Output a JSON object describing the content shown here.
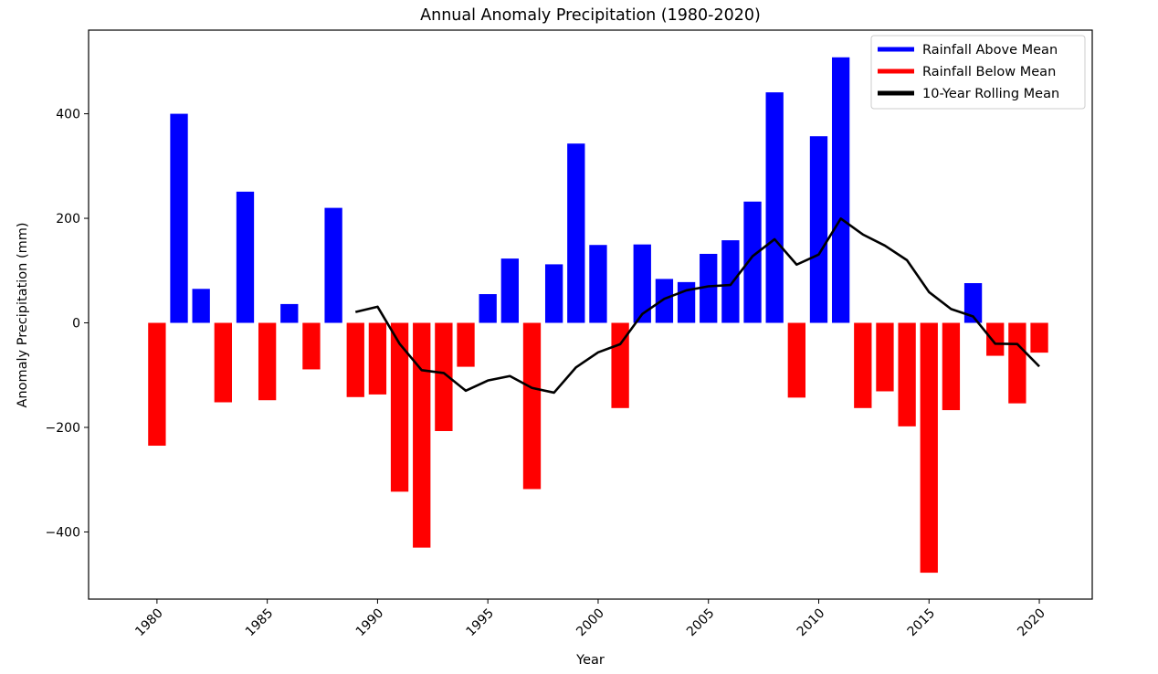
{
  "chart_data": {
    "type": "bar",
    "title": "Annual Anomaly Precipitation (1980-2020)",
    "xlabel": "Year",
    "ylabel": "Anomaly Precipitation (mm)",
    "x": [
      1980,
      1981,
      1982,
      1983,
      1984,
      1985,
      1986,
      1987,
      1988,
      1989,
      1990,
      1991,
      1992,
      1993,
      1994,
      1995,
      1996,
      1997,
      1998,
      1999,
      2000,
      2001,
      2002,
      2003,
      2004,
      2005,
      2006,
      2007,
      2008,
      2009,
      2010,
      2011,
      2012,
      2013,
      2014,
      2015,
      2016,
      2017,
      2018,
      2019,
      2020
    ],
    "values": [
      -235,
      400,
      65,
      -152,
      251,
      -148,
      36,
      -89,
      220,
      -142,
      -137,
      -323,
      -430,
      -207,
      -84,
      55,
      123,
      -318,
      112,
      343,
      149,
      -163,
      150,
      84,
      78,
      132,
      158,
      232,
      441,
      -143,
      357,
      508,
      -163,
      -131,
      -198,
      -478,
      -167,
      76,
      -63,
      -154,
      -57
    ],
    "series": [
      {
        "name": "Rainfall Above Mean",
        "color": "#0000ff",
        "rule": "value >= 0"
      },
      {
        "name": "Rainfall Below Mean",
        "color": "#ff0000",
        "rule": "value < 0"
      },
      {
        "name": "10-Year Rolling Mean",
        "color": "#000000",
        "type": "line",
        "x": [
          1989,
          1990,
          1991,
          1992,
          1993,
          1994,
          1995,
          1996,
          1997,
          1998,
          1999,
          2000,
          2001,
          2002,
          2003,
          2004,
          2005,
          2006,
          2007,
          2008,
          2009,
          2010,
          2011,
          2012,
          2013,
          2014,
          2015,
          2016,
          2017,
          2018,
          2019,
          2020
        ],
        "values": [
          20.7,
          30.9,
          -40,
          -90.5,
          -95.9,
          -129.8,
          -110.3,
          -101.8,
          -124.4,
          -133.5,
          -85,
          -56.4,
          -40.8,
          16.9,
          46,
          62.2,
          69.9,
          72.5,
          127.5,
          160,
          111.4,
          130.7,
          199.5,
          169.1,
          147.8,
          119.9,
          58.9,
          26.4,
          12.2,
          -39.8,
          -40.5,
          -83.4
        ]
      }
    ],
    "xticks": [
      1980,
      1985,
      1990,
      1995,
      2000,
      2005,
      2010,
      2015,
      2020
    ],
    "yticks": [
      -400,
      -200,
      0,
      200,
      400
    ],
    "xlim": [
      1976.9,
      2022.4
    ],
    "ylim": [
      -528.5,
      560
    ],
    "legend": "top-right",
    "grid": false
  }
}
